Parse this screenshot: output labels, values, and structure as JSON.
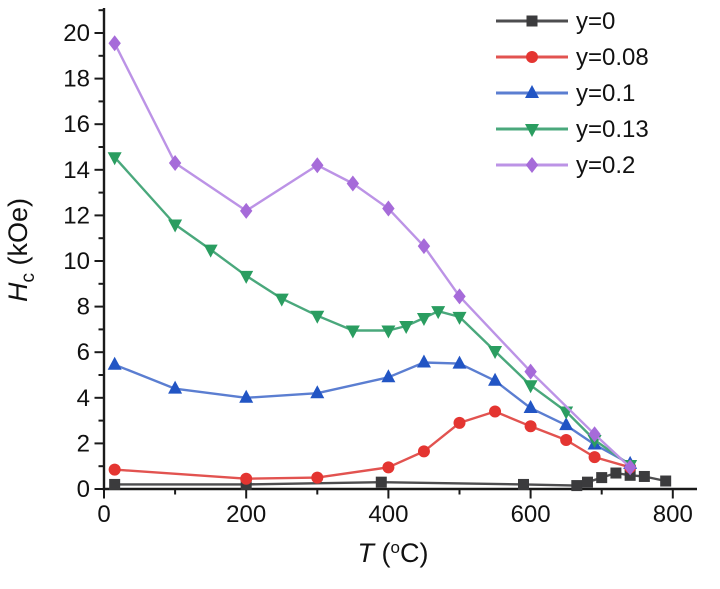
{
  "chart_data": {
    "type": "line",
    "title": "",
    "xlabel": "T (°C)",
    "ylabel": "Hc (kOe)",
    "xlabel_parts": {
      "symbol": "T",
      "open": " (",
      "sup": "o",
      "close": "C)"
    },
    "ylabel_parts": {
      "symbol": "H",
      "sub": "c",
      "unit": " (kOe)"
    },
    "xlim": [
      0,
      834
    ],
    "ylim": [
      0,
      21
    ],
    "x_major_ticks": [
      0,
      200,
      400,
      600,
      800
    ],
    "x_minor_ticks": [
      100,
      300,
      500,
      700
    ],
    "y_major_ticks": [
      0,
      2,
      4,
      6,
      8,
      10,
      12,
      14,
      16,
      18,
      20
    ],
    "y_minor_ticks": [
      1,
      3,
      5,
      7,
      9,
      11,
      13,
      15,
      17,
      19,
      21
    ],
    "grid": false,
    "legend_position": "top-right",
    "axis_color": "#1a1a1a",
    "series": [
      {
        "label": "y=0",
        "marker": "square",
        "marker_color": "#3b3b3d",
        "line_color": "#4d4d4f",
        "points": [
          [
            15,
            0.2
          ],
          [
            200,
            0.2
          ],
          [
            390,
            0.3
          ],
          [
            590,
            0.2
          ],
          [
            665,
            0.15
          ],
          [
            680,
            0.3
          ],
          [
            700,
            0.5
          ],
          [
            720,
            0.7
          ],
          [
            740,
            0.6
          ],
          [
            760,
            0.55
          ],
          [
            790,
            0.35
          ]
        ]
      },
      {
        "label": "y=0.08",
        "marker": "circle",
        "marker_color": "#e43531",
        "line_color": "#e25350",
        "points": [
          [
            15,
            0.85
          ],
          [
            200,
            0.45
          ],
          [
            300,
            0.5
          ],
          [
            400,
            0.95
          ],
          [
            450,
            1.65
          ],
          [
            500,
            2.9
          ],
          [
            550,
            3.4
          ],
          [
            600,
            2.75
          ],
          [
            650,
            2.15
          ],
          [
            690,
            1.4
          ],
          [
            740,
            0.95
          ]
        ]
      },
      {
        "label": "y=0.1",
        "marker": "triangle-up",
        "marker_color": "#2255c4",
        "line_color": "#5b7ed1",
        "points": [
          [
            15,
            5.45
          ],
          [
            100,
            4.4
          ],
          [
            200,
            4.0
          ],
          [
            300,
            4.2
          ],
          [
            400,
            4.9
          ],
          [
            450,
            5.55
          ],
          [
            500,
            5.5
          ],
          [
            550,
            4.75
          ],
          [
            600,
            3.55
          ],
          [
            650,
            2.8
          ],
          [
            690,
            1.95
          ],
          [
            740,
            1.1
          ]
        ]
      },
      {
        "label": "y=0.13",
        "marker": "triangle-down",
        "marker_color": "#2a9d60",
        "line_color": "#4aa87c",
        "points": [
          [
            15,
            14.55
          ],
          [
            100,
            11.6
          ],
          [
            150,
            10.5
          ],
          [
            200,
            9.35
          ],
          [
            250,
            8.35
          ],
          [
            300,
            7.6
          ],
          [
            350,
            6.95
          ],
          [
            400,
            6.95
          ],
          [
            425,
            7.15
          ],
          [
            450,
            7.5
          ],
          [
            470,
            7.8
          ],
          [
            500,
            7.55
          ],
          [
            550,
            6.05
          ],
          [
            600,
            4.55
          ],
          [
            650,
            3.4
          ],
          [
            690,
            2.15
          ],
          [
            740,
            1.05
          ]
        ]
      },
      {
        "label": "y=0.2",
        "marker": "diamond",
        "marker_color": "#a66bd9",
        "line_color": "#bc93e6",
        "points": [
          [
            15,
            19.55
          ],
          [
            100,
            14.3
          ],
          [
            200,
            12.2
          ],
          [
            300,
            14.2
          ],
          [
            350,
            13.4
          ],
          [
            400,
            12.3
          ],
          [
            450,
            10.65
          ],
          [
            500,
            8.45
          ],
          [
            600,
            5.15
          ],
          [
            690,
            2.4
          ],
          [
            740,
            0.95
          ]
        ]
      }
    ]
  }
}
